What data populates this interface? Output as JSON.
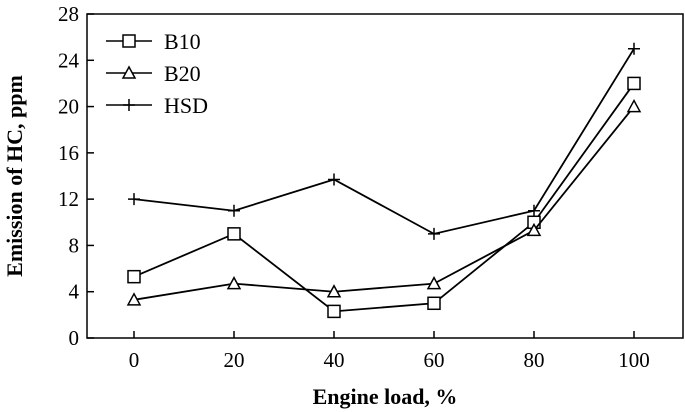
{
  "chart_data": {
    "type": "line",
    "xlabel": "Engine load, %",
    "ylabel": "Emission of HC, ppm",
    "x": [
      0,
      20,
      40,
      60,
      80,
      100
    ],
    "x_ticks": [
      "0",
      "20",
      "40",
      "60",
      "80",
      "100"
    ],
    "y_ticks": [
      "0",
      "4",
      "8",
      "12",
      "16",
      "20",
      "24",
      "28"
    ],
    "ylim": [
      0,
      28
    ],
    "grid": false,
    "legend_placement": "top-left",
    "series": [
      {
        "name": "B10",
        "marker": "square",
        "values": [
          5.3,
          9.0,
          2.3,
          3.0,
          10.0,
          22.0
        ]
      },
      {
        "name": "B20",
        "marker": "triangle",
        "values": [
          3.3,
          4.7,
          4.0,
          4.7,
          9.3,
          20.0
        ]
      },
      {
        "name": "HSD",
        "marker": "plus",
        "values": [
          12.0,
          11.0,
          13.7,
          9.0,
          11.0,
          25.0
        ]
      }
    ]
  }
}
